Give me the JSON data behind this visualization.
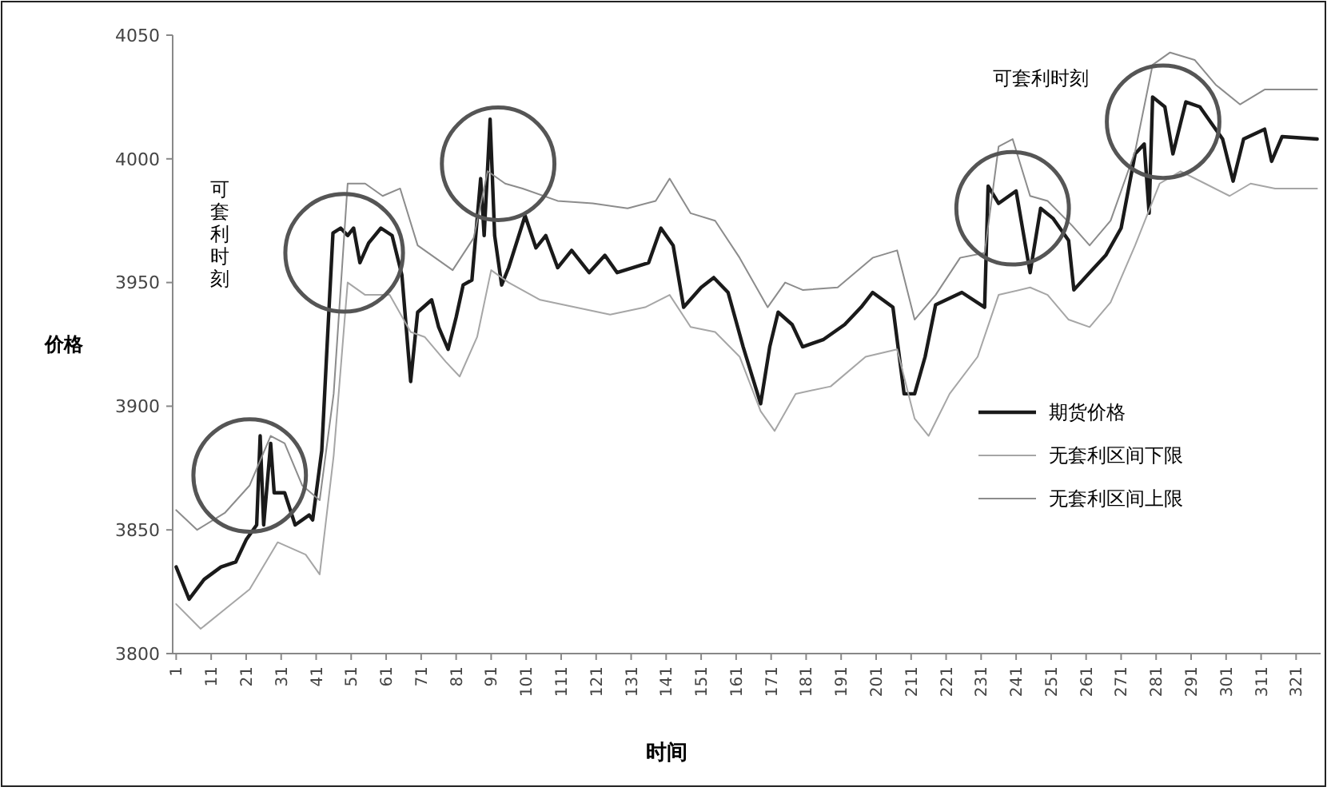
{
  "chart_data": {
    "type": "line",
    "xlabel": "时间",
    "ylabel": "价格",
    "xlim": [
      0,
      328
    ],
    "xticks": [
      1,
      11,
      21,
      31,
      41,
      51,
      61,
      71,
      81,
      91,
      101,
      111,
      121,
      131,
      141,
      151,
      161,
      171,
      181,
      191,
      201,
      211,
      221,
      231,
      241,
      251,
      261,
      271,
      281,
      291,
      301,
      311,
      321
    ],
    "ylim": [
      3800,
      4050
    ],
    "yticks": [
      3800,
      3850,
      3900,
      3950,
      4000,
      4050
    ],
    "grid": false,
    "legend": "right",
    "marker": "none",
    "annotations": [
      "可套利时刻",
      "可套利时刻"
    ],
    "series": [
      {
        "name": "期货价格",
        "color": "#1a1a1a",
        "x": [
          1,
          4.7,
          9,
          13.8,
          18,
          21,
          24,
          25,
          26,
          28,
          29,
          32,
          35,
          39,
          40,
          42.6,
          44,
          45.8,
          48,
          50,
          51.7,
          53.5,
          56,
          59.5,
          62.7,
          65.5,
          68,
          70,
          74,
          76,
          78.7,
          81,
          83,
          85.5,
          88,
          89,
          90.7,
          92,
          94,
          96,
          100.7,
          103.8,
          106.6,
          110,
          114,
          119,
          123.5,
          127,
          136,
          139.5,
          143,
          146,
          151,
          154.6,
          158.7,
          163,
          168,
          170.6,
          173,
          177,
          180,
          186,
          192,
          196.7,
          200,
          205.8,
          209,
          212,
          215,
          218,
          225.5,
          232,
          233,
          236,
          241,
          245,
          248,
          251.5,
          256,
          257.5,
          262,
          266.6,
          271,
          275,
          277.6,
          279,
          280,
          283.5,
          285.8,
          289.5,
          293.5,
          297,
          300,
          303,
          306,
          312,
          314,
          317,
          327
        ],
        "values": [
          3835,
          3822,
          3830,
          3835,
          3837,
          3846,
          3852,
          3888,
          3852,
          3885,
          3865,
          3865,
          3852,
          3856,
          3854,
          3882,
          3921,
          3970,
          3972,
          3969,
          3972,
          3958,
          3966,
          3972,
          3969,
          3953,
          3910,
          3938,
          3943,
          3932,
          3923,
          3936,
          3949,
          3951,
          3992,
          3969,
          4016,
          3969,
          3949,
          3956,
          3977,
          3964,
          3969,
          3956,
          3963,
          3954,
          3961,
          3954,
          3958,
          3972,
          3965,
          3940,
          3948,
          3952,
          3946,
          3924,
          3901,
          3924,
          3938,
          3933,
          3924,
          3927,
          3933,
          3940,
          3946,
          3940,
          3905,
          3905,
          3920,
          3941,
          3946,
          3940,
          3989,
          3982,
          3987,
          3954,
          3980,
          3976,
          3967,
          3947,
          3954,
          3961,
          3972,
          4002,
          4006,
          3978,
          4025,
          4021,
          4002,
          4023,
          4021,
          4014,
          4008,
          3991,
          4008,
          4012,
          3999,
          4009,
          4008
        ]
      },
      {
        "name": "无套利区间下限",
        "color": "#a6a6a6",
        "x": [
          1,
          8,
          15,
          22,
          30,
          38,
          42,
          46,
          50,
          55,
          62,
          68,
          72,
          78,
          82,
          87,
          91,
          96,
          105,
          115,
          125,
          135,
          142,
          148,
          155,
          162,
          168,
          172,
          178,
          188,
          198,
          207,
          212,
          216,
          222,
          230,
          236,
          245,
          250,
          256,
          262,
          268,
          275,
          282,
          288,
          295,
          302,
          308,
          315,
          327
        ],
        "values": [
          3820,
          3810,
          3818,
          3826,
          3845,
          3840,
          3832,
          3880,
          3950,
          3945,
          3945,
          3930,
          3928,
          3918,
          3912,
          3928,
          3955,
          3950,
          3943,
          3940,
          3937,
          3940,
          3945,
          3932,
          3930,
          3920,
          3898,
          3890,
          3905,
          3908,
          3920,
          3923,
          3895,
          3888,
          3905,
          3920,
          3945,
          3948,
          3945,
          3935,
          3932,
          3942,
          3965,
          3990,
          3995,
          3990,
          3985,
          3990,
          3988,
          3988
        ]
      },
      {
        "name": "无套利区间上限",
        "color": "#8c8c8c",
        "x": [
          1,
          7,
          15,
          22,
          28,
          32,
          37,
          42,
          46,
          50,
          55,
          60,
          65,
          70,
          75,
          80,
          86,
          90,
          95,
          100,
          110,
          120,
          130,
          138,
          142,
          148,
          155,
          162,
          170,
          175,
          180,
          190,
          200,
          207,
          212,
          218,
          225,
          232,
          236,
          240,
          245,
          250,
          257,
          262,
          268,
          275,
          280,
          285,
          292,
          298,
          305,
          312,
          320,
          327
        ],
        "values": [
          3858,
          3850,
          3857,
          3868,
          3888,
          3885,
          3868,
          3862,
          3905,
          3990,
          3990,
          3985,
          3988,
          3965,
          3960,
          3955,
          3968,
          3995,
          3990,
          3988,
          3983,
          3982,
          3980,
          3983,
          3992,
          3978,
          3975,
          3960,
          3940,
          3950,
          3947,
          3948,
          3960,
          3963,
          3935,
          3945,
          3960,
          3962,
          4005,
          4008,
          3985,
          3983,
          3973,
          3965,
          3975,
          4003,
          4038,
          4043,
          4040,
          4030,
          4022,
          4028,
          4028,
          4028
        ]
      }
    ]
  }
}
